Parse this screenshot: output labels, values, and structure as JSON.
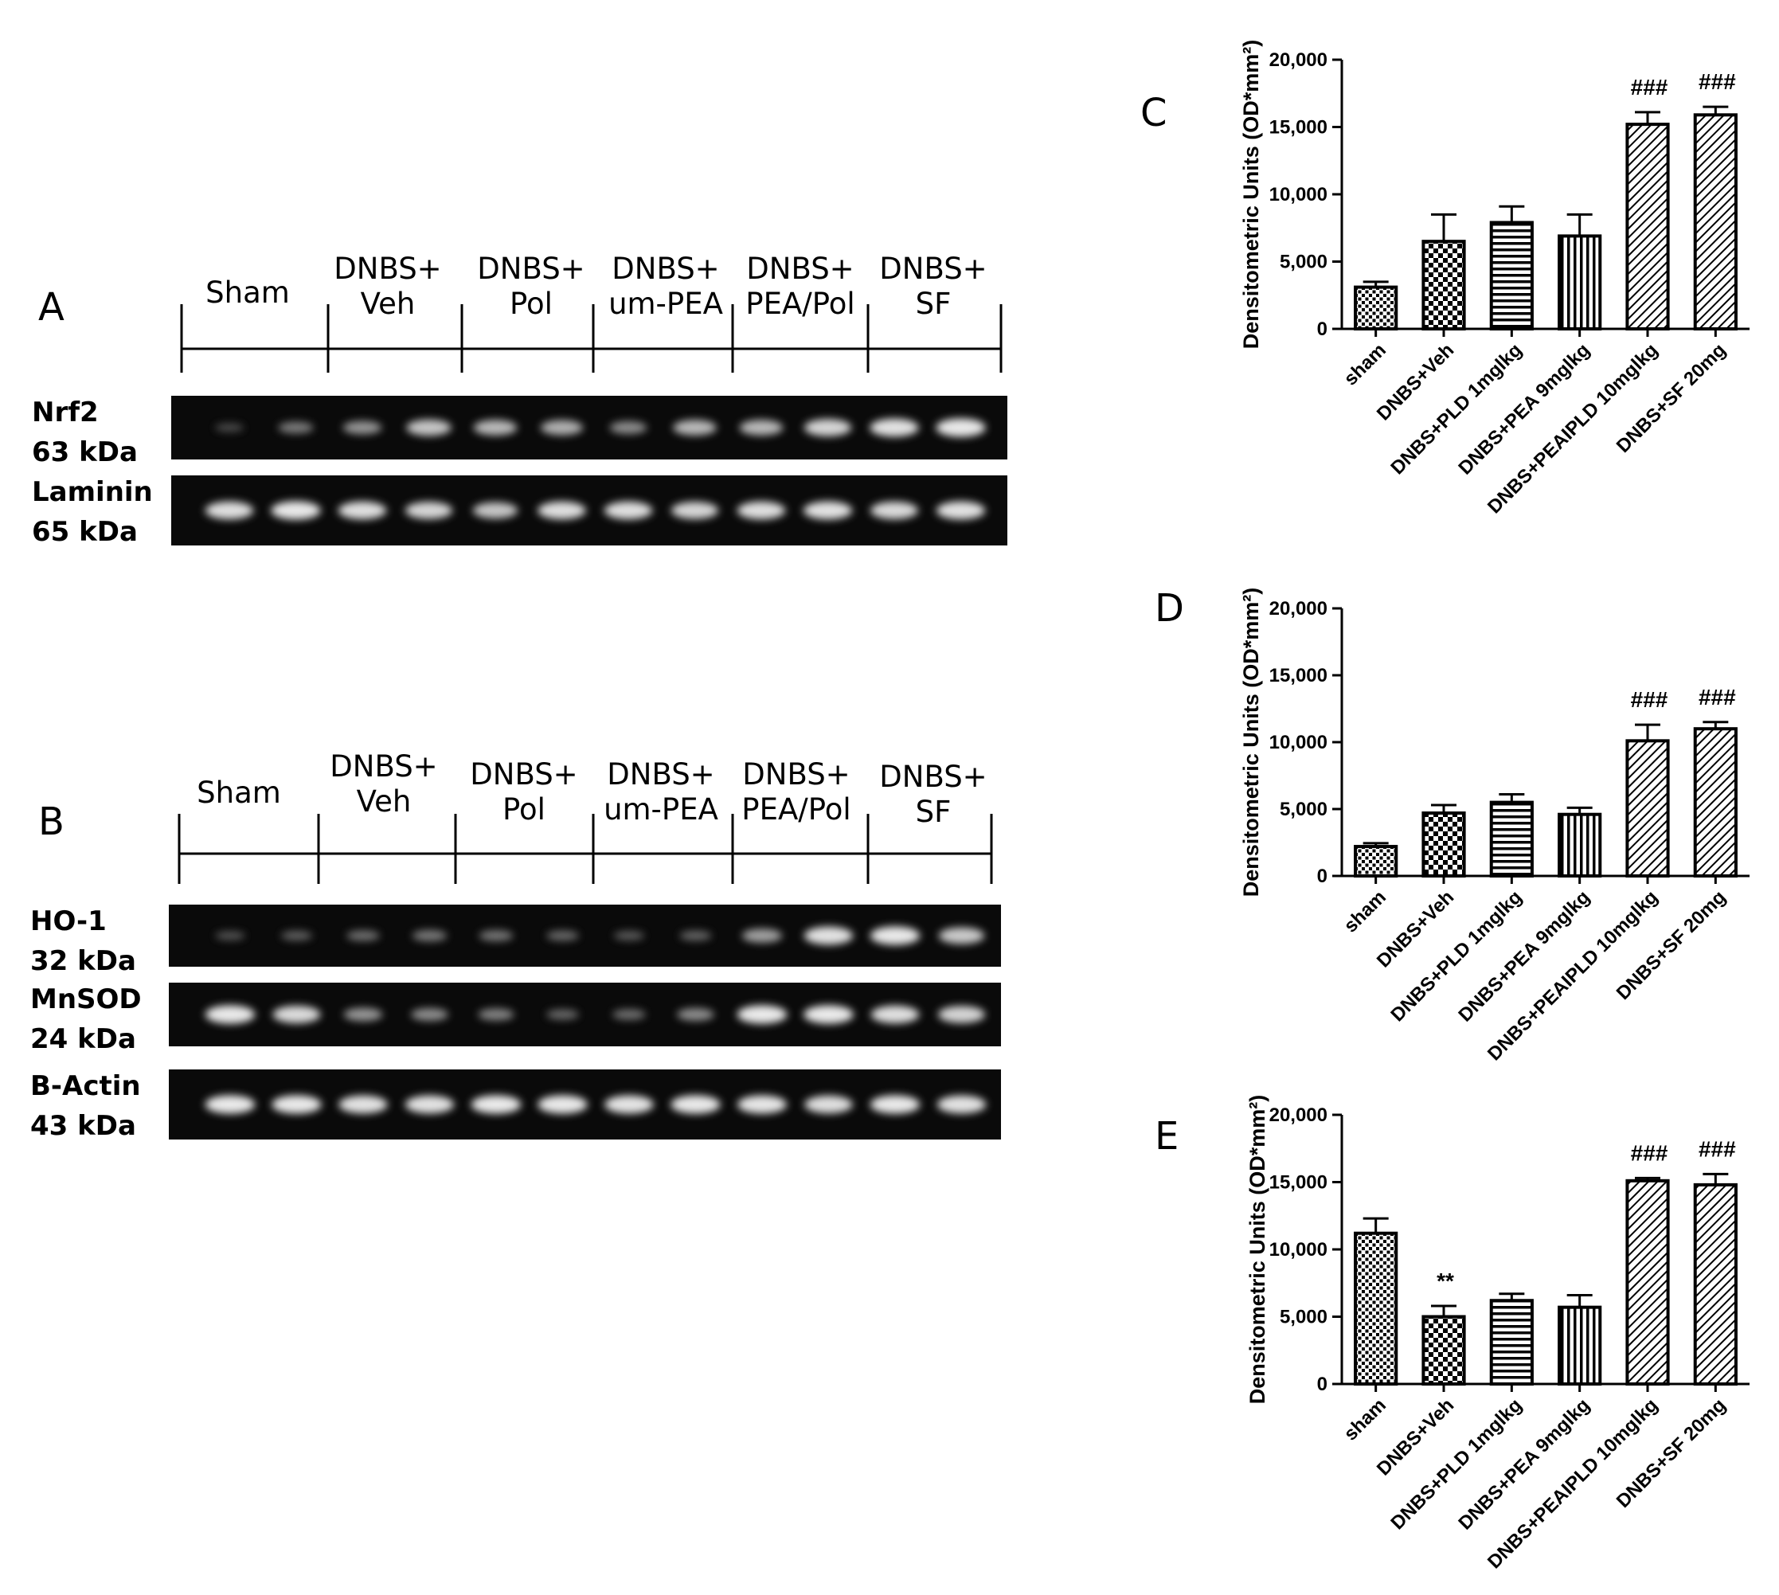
{
  "figure": {
    "panel_letters": [
      "A",
      "B",
      "C",
      "D",
      "E"
    ]
  },
  "blots": [
    {
      "letter": "A",
      "groups": [
        {
          "lines": [
            "Sham"
          ]
        },
        {
          "lines": [
            "DNBS+",
            "Veh"
          ]
        },
        {
          "lines": [
            "DNBS+",
            "Pol"
          ]
        },
        {
          "lines": [
            "DNBS+",
            "um-PEA"
          ]
        },
        {
          "lines": [
            "DNBS+",
            "PEA/Pol"
          ]
        },
        {
          "lines": [
            "DNBS+",
            "SF"
          ]
        }
      ],
      "rows": [
        {
          "label": [
            "Nrf2",
            "63 kDa"
          ],
          "intensities": [
            0.18,
            0.42,
            0.55,
            0.78,
            0.72,
            0.68,
            0.5,
            0.72,
            0.72,
            0.86,
            0.92,
            0.95
          ]
        },
        {
          "label": [
            "Laminin",
            "65 kDa"
          ],
          "intensities": [
            0.9,
            0.95,
            0.9,
            0.86,
            0.78,
            0.9,
            0.9,
            0.86,
            0.9,
            0.92,
            0.88,
            0.92
          ]
        }
      ]
    },
    {
      "letter": "B",
      "groups": [
        {
          "lines": [
            "Sham"
          ]
        },
        {
          "lines": [
            "DNBS+",
            "Veh"
          ]
        },
        {
          "lines": [
            "DNBS+",
            "Pol"
          ]
        },
        {
          "lines": [
            "DNBS+",
            "um-PEA"
          ]
        },
        {
          "lines": [
            "DNBS+",
            "PEA/Pol"
          ]
        },
        {
          "lines": [
            "DNBS+",
            "SF"
          ]
        }
      ],
      "rows": [
        {
          "label": [
            "HO-1",
            "32 kDa"
          ],
          "intensities": [
            0.22,
            0.28,
            0.35,
            0.4,
            0.38,
            0.32,
            0.25,
            0.3,
            0.6,
            0.92,
            0.95,
            0.8
          ]
        },
        {
          "label": [
            "MnSOD",
            "24 kDa"
          ],
          "intensities": [
            0.95,
            0.88,
            0.55,
            0.5,
            0.45,
            0.32,
            0.35,
            0.5,
            0.96,
            0.96,
            0.9,
            0.85
          ]
        },
        {
          "label": [
            "B-Actin",
            "43 kDa"
          ],
          "intensities": [
            0.96,
            0.95,
            0.92,
            0.92,
            0.96,
            0.95,
            0.93,
            0.95,
            0.94,
            0.9,
            0.95,
            0.92
          ]
        }
      ]
    }
  ],
  "chart_data": [
    {
      "panel": "C",
      "type": "bar",
      "ylabel": "Densitometric Units (OD*mm²)",
      "ylim": [
        0,
        20000
      ],
      "yticks": [
        "0",
        "5,000",
        "10,000",
        "15,000",
        "20,000"
      ],
      "categories": [
        "sham",
        "DNBS+Veh",
        "DNBS+PLD 1mglkg",
        "DNBS+PEA 9mglkg",
        "DNBS+PEAIPLD 10mglkg",
        "DNBS+SF 20mg"
      ],
      "values": [
        3100,
        6500,
        7900,
        6900,
        15200,
        15900
      ],
      "errors": [
        400,
        2000,
        1200,
        1600,
        900,
        600
      ],
      "annotations": [
        "",
        "",
        "",
        "",
        "###",
        "###"
      ]
    },
    {
      "panel": "D",
      "type": "bar",
      "ylabel": "Densitometric Units (OD*mm²)",
      "ylim": [
        0,
        20000
      ],
      "yticks": [
        "0",
        "5,000",
        "10,000",
        "15,000",
        "20,000"
      ],
      "categories": [
        "sham",
        "DNBS+Veh",
        "DNBS+PLD 1mglkg",
        "DNBS+PEA 9mglkg",
        "DNBS+PEAIPLD 10mglkg",
        "DNBS+SF 20mg"
      ],
      "values": [
        2200,
        4700,
        5500,
        4600,
        10100,
        11000
      ],
      "errors": [
        250,
        600,
        600,
        500,
        1200,
        500
      ],
      "annotations": [
        "",
        "",
        "",
        "",
        "###",
        "###"
      ]
    },
    {
      "panel": "E",
      "type": "bar",
      "ylabel": "Densitometric Units (OD*mm²)",
      "ylim": [
        0,
        20000
      ],
      "yticks": [
        "0",
        "5,000",
        "10,000",
        "15,000",
        "20,000"
      ],
      "categories": [
        "sham",
        "DNBS+Veh",
        "DNBS+PLD 1mglkg",
        "DNBS+PEA 9mglkg",
        "DNBS+PEAIPLD 10mglkg",
        "DNBS+SF 20mg"
      ],
      "values": [
        11200,
        5000,
        6200,
        5700,
        15100,
        14800
      ],
      "errors": [
        1100,
        800,
        500,
        900,
        200,
        800
      ],
      "annotations": [
        "",
        "**",
        "",
        "",
        "###",
        "###"
      ]
    }
  ]
}
